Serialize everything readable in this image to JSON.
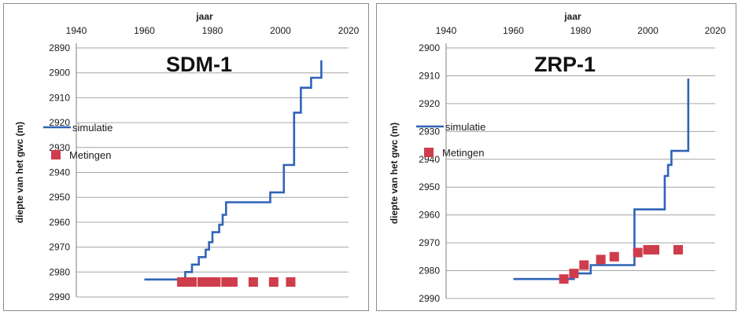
{
  "colors": {
    "simulation": "#2f63b8",
    "measurements": "#cf3d4c",
    "grid": "#a6a6a6"
  },
  "chart_data": [
    {
      "type": "line",
      "title": "SDM-1",
      "xlabel": "jaar",
      "ylabel": "diepte van het gwc (m)",
      "xlim": [
        1940,
        2020
      ],
      "ylim": [
        2890,
        2990
      ],
      "y_inverted": true,
      "x_axis_position": "top",
      "xticks": [
        1940,
        1960,
        1980,
        2000,
        2020
      ],
      "yticks": [
        2890,
        2900,
        2910,
        2920,
        2930,
        2940,
        2950,
        2960,
        2970,
        2980,
        2990
      ],
      "grid": "horizontal",
      "legend_position": "middle-left",
      "series": [
        {
          "name": "simulatie",
          "type": "step-line",
          "x": [
            1960,
            1972,
            1972,
            1974,
            1974,
            1976,
            1976,
            1978,
            1978,
            1979,
            1979,
            1980,
            1980,
            1982,
            1982,
            1983,
            1983,
            1984,
            1984,
            1997,
            1997,
            2001,
            2001,
            2004,
            2004,
            2006,
            2006,
            2009,
            2009,
            2012,
            2012
          ],
          "y": [
            2983,
            2983,
            2980,
            2980,
            2977,
            2977,
            2974,
            2974,
            2971,
            2971,
            2968,
            2968,
            2964,
            2964,
            2961,
            2961,
            2957,
            2957,
            2952,
            2952,
            2948,
            2948,
            2937,
            2937,
            2916,
            2916,
            2906,
            2906,
            2902,
            2902,
            2895
          ]
        },
        {
          "name": "Metingen",
          "type": "scatter",
          "x": [
            1971,
            1972,
            1973,
            1974,
            1977,
            1978,
            1979,
            1980,
            1981,
            1984,
            1985,
            1986,
            1992,
            1998,
            2003
          ],
          "y": [
            2984,
            2984,
            2984,
            2984,
            2984,
            2984,
            2984,
            2984,
            2984,
            2984,
            2984,
            2984,
            2984,
            2984,
            2984
          ]
        }
      ]
    },
    {
      "type": "line",
      "title": "ZRP-1",
      "xlabel": "jaar",
      "ylabel": "diepte van het gwc (m)",
      "xlim": [
        1940,
        2020
      ],
      "ylim": [
        2900,
        2990
      ],
      "y_inverted": true,
      "x_axis_position": "top",
      "xticks": [
        1940,
        1960,
        1980,
        2000,
        2020
      ],
      "yticks": [
        2900,
        2910,
        2920,
        2930,
        2940,
        2950,
        2960,
        2970,
        2980,
        2990
      ],
      "grid": "horizontal",
      "legend_position": "middle-left",
      "series": [
        {
          "name": "simulatie",
          "type": "step-line",
          "x": [
            1960,
            1978,
            1978,
            1983,
            1983,
            1996,
            1996,
            2005,
            2005,
            2006,
            2006,
            2007,
            2007,
            2012,
            2012
          ],
          "y": [
            2983,
            2983,
            2981,
            2981,
            2978,
            2978,
            2958,
            2958,
            2946,
            2946,
            2942,
            2942,
            2937,
            2937,
            2911
          ]
        },
        {
          "name": "Metingen",
          "type": "scatter",
          "x": [
            1975,
            1978,
            1981,
            1986,
            1990,
            1997,
            2000,
            2002,
            2009
          ],
          "y": [
            2983,
            2981,
            2978,
            2976,
            2975,
            2973.5,
            2972.5,
            2972.5,
            2972.5
          ]
        }
      ]
    }
  ]
}
